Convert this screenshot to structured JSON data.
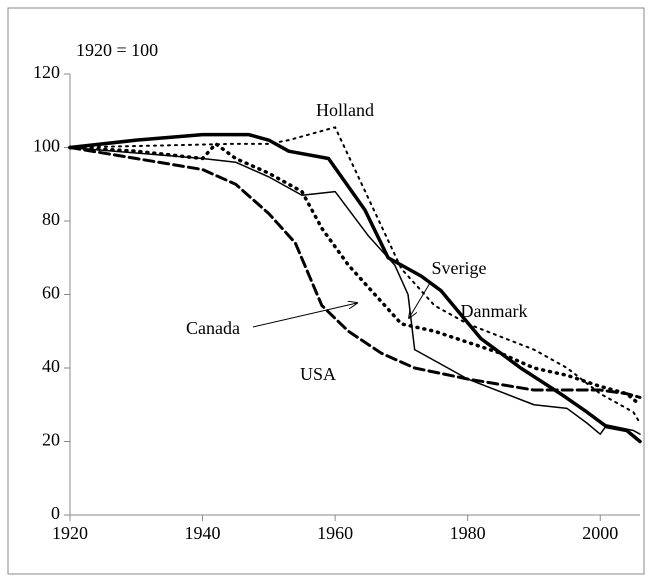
{
  "chart_data": {
    "type": "line",
    "title": "1920 = 100",
    "xlim": [
      1920,
      2006
    ],
    "xticks": [
      1920,
      1940,
      1960,
      1980,
      2000
    ],
    "ylim": [
      0,
      120
    ],
    "yticks": [
      0,
      20,
      40,
      60,
      80,
      100,
      120
    ],
    "annotations": [
      "Holland",
      "Sverige",
      "Danmark",
      "Canada",
      "USA"
    ],
    "series": [
      {
        "name": "Danmark",
        "color": "#000000",
        "width": 3.5,
        "dash": "none",
        "x": [
          1920,
          1930,
          1940,
          1947,
          1950,
          1953,
          1959,
          1964.5,
          1968,
          1973,
          1976,
          1982,
          1988,
          1994,
          1998,
          2001,
          2004,
          2006
        ],
        "values": [
          100,
          102,
          103.5,
          103.5,
          102,
          99,
          97,
          83,
          70,
          65,
          61,
          48,
          40,
          33,
          28,
          24,
          23,
          20
        ]
      },
      {
        "name": "Holland",
        "color": "#000000",
        "width": 2,
        "dash": "2,5",
        "x": [
          1920,
          1945,
          1950,
          1953,
          1960,
          1970,
          1975,
          1980,
          1990,
          1995,
          2000,
          2005,
          2006
        ],
        "values": [
          100,
          101,
          101,
          102,
          105.5,
          67,
          57,
          52,
          45,
          40,
          33,
          28,
          25
        ]
      },
      {
        "name": "Sverige",
        "color": "#000000",
        "width": 1.5,
        "dash": "none",
        "x": [
          1920,
          1940,
          1945,
          1950,
          1955,
          1960,
          1965,
          1969,
          1971,
          1972,
          1975,
          1980,
          1990,
          1995,
          1998,
          2000,
          2001,
          2005,
          2006
        ],
        "values": [
          100,
          97,
          96,
          92,
          87,
          88,
          76,
          68,
          60,
          45,
          42,
          37,
          30,
          29,
          25,
          22,
          24.5,
          23,
          22
        ]
      },
      {
        "name": "Canada",
        "color": "#000000",
        "width": 3.5,
        "dash": "1,6",
        "x": [
          1920,
          1930,
          1940,
          1942,
          1945,
          1950,
          1955,
          1958,
          1962,
          1967,
          1970,
          1975,
          1980,
          1985,
          1990,
          1995,
          2000,
          2004,
          2006
        ],
        "values": [
          100,
          99,
          97,
          101,
          97,
          93,
          88,
          78,
          68,
          58,
          52,
          50,
          47,
          44,
          40,
          38,
          35,
          33,
          30
        ]
      },
      {
        "name": "USA",
        "color": "#000000",
        "width": 3,
        "dash": "10,5",
        "x": [
          1920,
          1930,
          1940,
          1945,
          1950,
          1954,
          1958,
          1962,
          1967,
          1972,
          1980,
          1990,
          2000,
          2004,
          2006
        ],
        "values": [
          100,
          97,
          94,
          90,
          82,
          74,
          57,
          50,
          44,
          40,
          37,
          34,
          34,
          33,
          32
        ]
      }
    ]
  }
}
